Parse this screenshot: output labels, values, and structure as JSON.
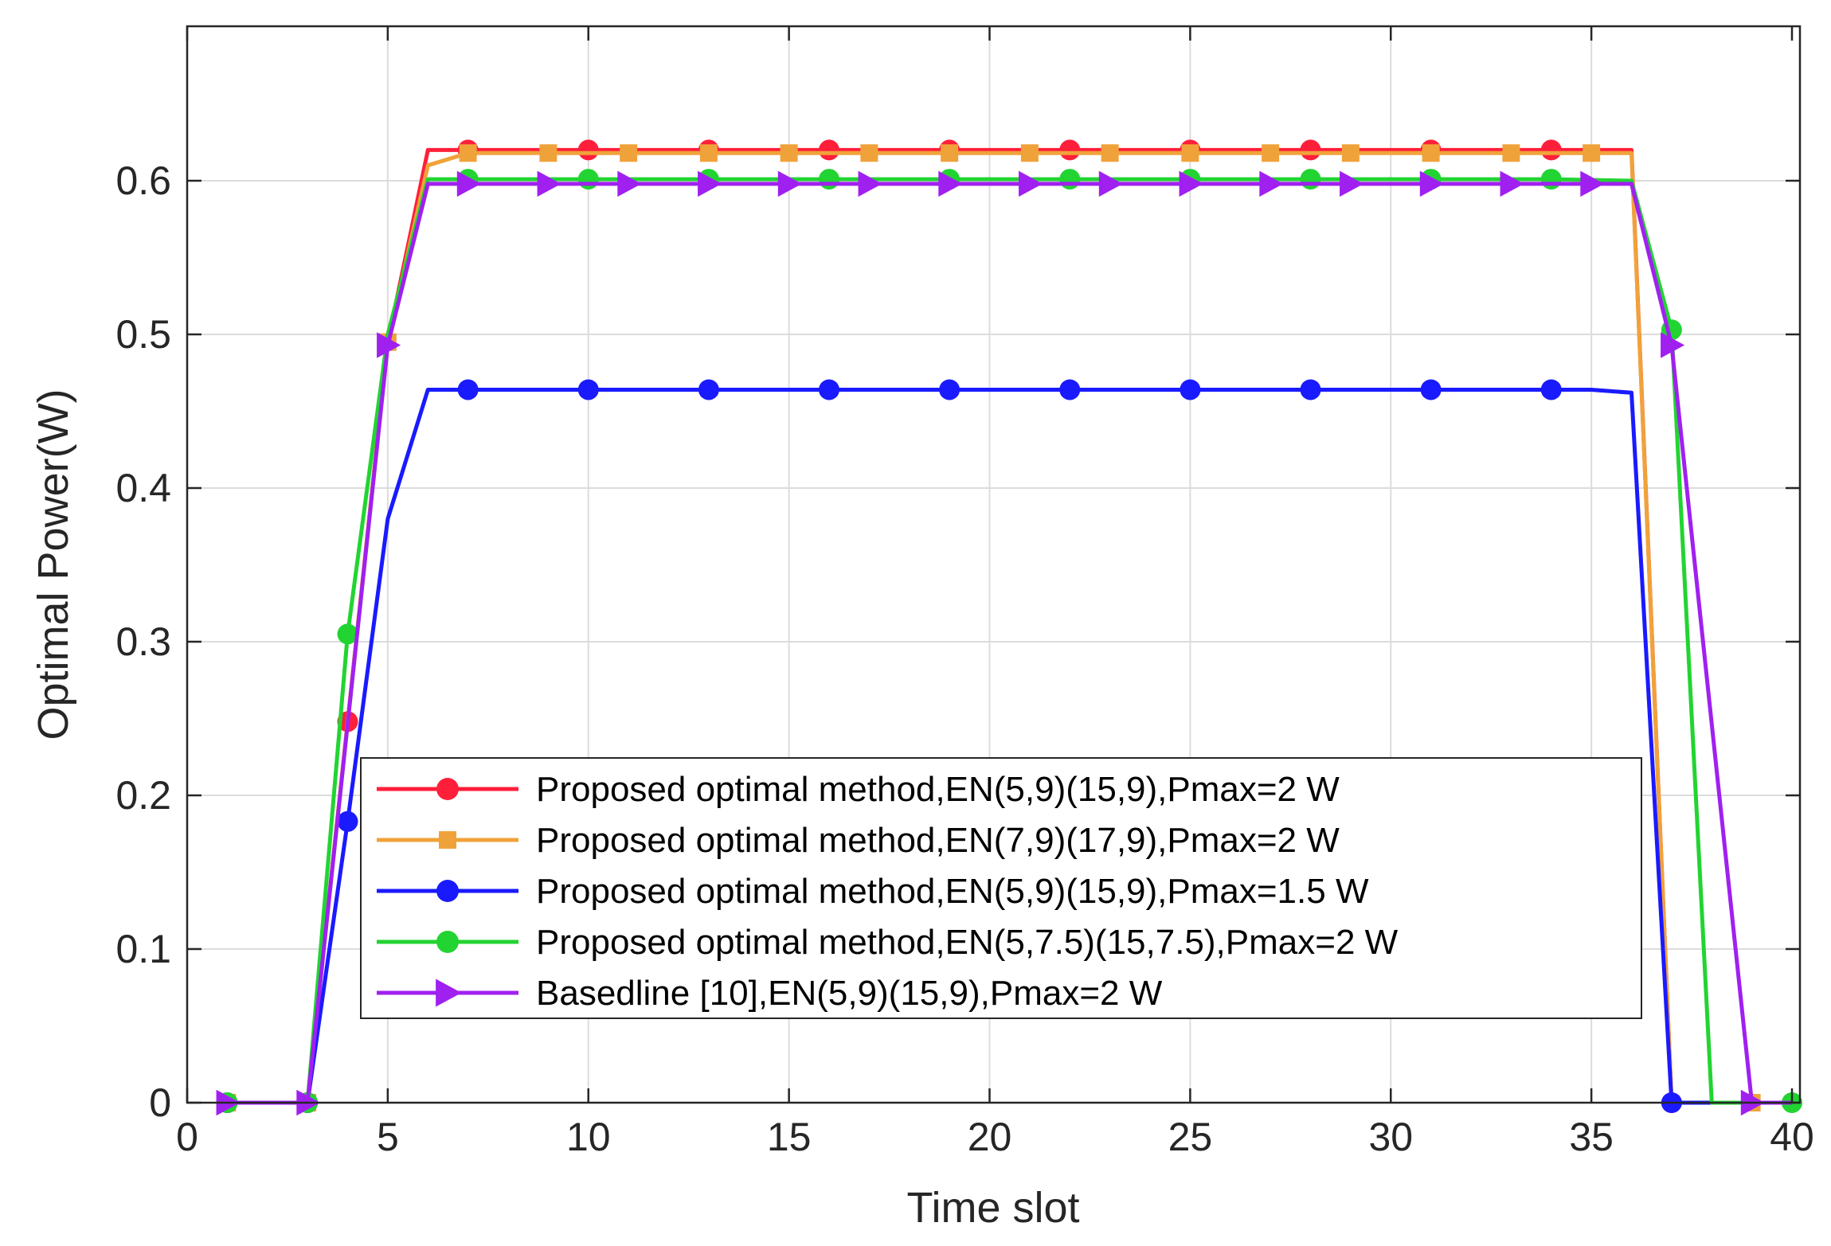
{
  "chart_data": {
    "type": "line",
    "title": "",
    "xlabel": "Time slot",
    "ylabel": "Optimal Power(W)",
    "xlim": [
      0,
      40
    ],
    "ylim": [
      0,
      0.7
    ],
    "grid": true,
    "legend_position": "bottom-center",
    "xticks": [
      0,
      5,
      10,
      15,
      20,
      25,
      30,
      35,
      40
    ],
    "xtick_labels": [
      "0",
      "5",
      "10",
      "15",
      "20",
      "25",
      "30",
      "35",
      "40"
    ],
    "yticks": [
      0,
      0.1,
      0.2,
      0.3,
      0.4,
      0.5,
      0.6
    ],
    "ytick_labels": [
      "0",
      "0.1",
      "0.2",
      "0.3",
      "0.4",
      "0.5",
      "0.6"
    ],
    "series": [
      {
        "name": "Proposed optimal method,EN(5,9)(15,9),Pmax=2 W",
        "color": "#ff1f3a",
        "marker": "circle",
        "points": [
          [
            1,
            0
          ],
          [
            3,
            0
          ],
          [
            4,
            0.248
          ],
          [
            5,
            0.495
          ],
          [
            6,
            0.62
          ],
          [
            7,
            0.62
          ],
          [
            10,
            0.62
          ],
          [
            13,
            0.62
          ],
          [
            16,
            0.62
          ],
          [
            19,
            0.62
          ],
          [
            22,
            0.62
          ],
          [
            25,
            0.62
          ],
          [
            28,
            0.62
          ],
          [
            31,
            0.62
          ],
          [
            34,
            0.62
          ],
          [
            36,
            0.62
          ],
          [
            37,
            0
          ],
          [
            40,
            0
          ]
        ],
        "marker_x": [
          1,
          3,
          4,
          7,
          10,
          13,
          16,
          19,
          22,
          25,
          28,
          31,
          34,
          37
        ]
      },
      {
        "name": "Proposed optimal method,EN(7,9)(17,9),Pmax=2 W",
        "color": "#f0a23a",
        "marker": "square",
        "points": [
          [
            1,
            0
          ],
          [
            3,
            0
          ],
          [
            4,
            0.248
          ],
          [
            5,
            0.495
          ],
          [
            6,
            0.61
          ],
          [
            7,
            0.618
          ],
          [
            9,
            0.618
          ],
          [
            11,
            0.618
          ],
          [
            13,
            0.618
          ],
          [
            15,
            0.618
          ],
          [
            17,
            0.618
          ],
          [
            19,
            0.618
          ],
          [
            21,
            0.618
          ],
          [
            23,
            0.618
          ],
          [
            25,
            0.618
          ],
          [
            27,
            0.618
          ],
          [
            29,
            0.618
          ],
          [
            31,
            0.618
          ],
          [
            33,
            0.618
          ],
          [
            35,
            0.618
          ],
          [
            36,
            0.618
          ],
          [
            37,
            0
          ],
          [
            39,
            0
          ],
          [
            40,
            0
          ]
        ],
        "marker_x": [
          1,
          3,
          5,
          7,
          9,
          11,
          13,
          15,
          17,
          19,
          21,
          23,
          25,
          27,
          29,
          31,
          33,
          35,
          39
        ]
      },
      {
        "name": "Proposed optimal method,EN(5,9)(15,9),Pmax=1.5 W",
        "color": "#1a1aff",
        "marker": "circle",
        "points": [
          [
            1,
            0
          ],
          [
            3,
            0
          ],
          [
            4,
            0.183
          ],
          [
            5,
            0.38
          ],
          [
            6,
            0.464
          ],
          [
            7,
            0.464
          ],
          [
            10,
            0.464
          ],
          [
            13,
            0.464
          ],
          [
            16,
            0.464
          ],
          [
            19,
            0.464
          ],
          [
            22,
            0.464
          ],
          [
            25,
            0.464
          ],
          [
            28,
            0.464
          ],
          [
            31,
            0.464
          ],
          [
            34,
            0.464
          ],
          [
            35,
            0.464
          ],
          [
            36,
            0.462
          ],
          [
            37,
            0
          ],
          [
            40,
            0
          ]
        ],
        "marker_x": [
          1,
          3,
          4,
          7,
          10,
          13,
          16,
          19,
          22,
          25,
          28,
          31,
          34,
          37
        ]
      },
      {
        "name": "Proposed optimal method,EN(5,7.5)(15,7.5),Pmax=2 W",
        "color": "#22d432",
        "marker": "circle",
        "points": [
          [
            1,
            0
          ],
          [
            3,
            0
          ],
          [
            4,
            0.305
          ],
          [
            5,
            0.5
          ],
          [
            6,
            0.601
          ],
          [
            7,
            0.601
          ],
          [
            10,
            0.601
          ],
          [
            13,
            0.601
          ],
          [
            16,
            0.601
          ],
          [
            19,
            0.601
          ],
          [
            22,
            0.601
          ],
          [
            25,
            0.601
          ],
          [
            28,
            0.601
          ],
          [
            31,
            0.601
          ],
          [
            34,
            0.601
          ],
          [
            36,
            0.6
          ],
          [
            37,
            0.503
          ],
          [
            38,
            0
          ],
          [
            40,
            0
          ]
        ],
        "marker_x": [
          1,
          3,
          4,
          7,
          10,
          13,
          16,
          19,
          22,
          25,
          28,
          31,
          34,
          37,
          40
        ]
      },
      {
        "name": "Basedline [10],EN(5,9)(15,9),Pmax=2 W",
        "color": "#a020f0",
        "marker": "triangle-right",
        "points": [
          [
            1,
            0
          ],
          [
            3,
            0
          ],
          [
            5,
            0.493
          ],
          [
            6,
            0.598
          ],
          [
            7,
            0.598
          ],
          [
            9,
            0.598
          ],
          [
            11,
            0.598
          ],
          [
            13,
            0.598
          ],
          [
            15,
            0.598
          ],
          [
            17,
            0.598
          ],
          [
            19,
            0.598
          ],
          [
            21,
            0.598
          ],
          [
            23,
            0.598
          ],
          [
            25,
            0.598
          ],
          [
            27,
            0.598
          ],
          [
            29,
            0.598
          ],
          [
            31,
            0.598
          ],
          [
            33,
            0.598
          ],
          [
            35,
            0.598
          ],
          [
            36,
            0.598
          ],
          [
            37,
            0.493
          ],
          [
            39,
            0
          ],
          [
            40,
            0
          ]
        ],
        "marker_x": [
          1,
          3,
          5,
          7,
          9,
          11,
          13,
          15,
          17,
          19,
          21,
          23,
          25,
          27,
          29,
          31,
          33,
          35,
          37,
          39
        ]
      }
    ]
  }
}
